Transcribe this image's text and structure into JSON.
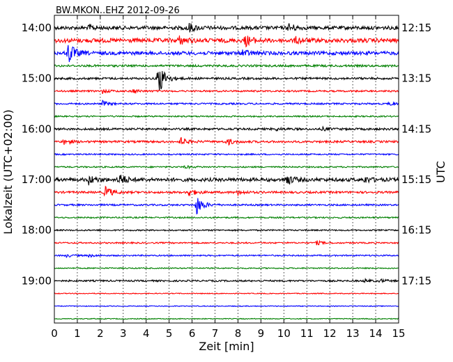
{
  "chart_data": {
    "type": "line",
    "title": "BW.MKON..EHZ 2012-09-26",
    "xlabel": "Zeit  [min]",
    "ylabel_left": "Lokalzeit (UTC+02:00)",
    "ylabel_right": "UTC",
    "xlim": [
      0,
      15
    ],
    "x_ticks": [
      "0",
      "1",
      "2",
      "3",
      "4",
      "5",
      "6",
      "7",
      "8",
      "9",
      "10",
      "11",
      "12",
      "13",
      "14",
      "15"
    ],
    "y_ticks_left": [
      "14:00",
      "15:00",
      "16:00",
      "17:00",
      "18:00",
      "19:00"
    ],
    "y_ticks_right": [
      "12:15",
      "13:15",
      "14:15",
      "15:15",
      "16:15",
      "17:15"
    ],
    "grid": "vertical dotted",
    "colors": [
      "#000000",
      "#ff0000",
      "#0000ff",
      "#008000"
    ],
    "series": [
      {
        "color": "#000000",
        "amp": 2.5,
        "events": [
          [
            1.5,
            4
          ],
          [
            5.8,
            8
          ],
          [
            10.2,
            6
          ]
        ]
      },
      {
        "color": "#ff0000",
        "amp": 3,
        "events": [
          [
            5.4,
            6
          ],
          [
            8.3,
            8
          ],
          [
            10.5,
            4
          ]
        ]
      },
      {
        "color": "#0000ff",
        "amp": 2.5,
        "events": [
          [
            0.6,
            16
          ],
          [
            8.2,
            5
          ]
        ]
      },
      {
        "color": "#008000",
        "amp": 1.5,
        "events": []
      },
      {
        "color": "#000000",
        "amp": 1.5,
        "events": [
          [
            4.5,
            28
          ]
        ]
      },
      {
        "color": "#ff0000",
        "amp": 1.2,
        "events": [
          [
            2.1,
            3
          ],
          [
            3.4,
            3
          ]
        ]
      },
      {
        "color": "#0000ff",
        "amp": 1.2,
        "events": [
          [
            2.1,
            4
          ],
          [
            14.6,
            2
          ]
        ]
      },
      {
        "color": "#008000",
        "amp": 1.0,
        "events": []
      },
      {
        "color": "#000000",
        "amp": 1.5,
        "events": [
          [
            9.6,
            2
          ],
          [
            11.7,
            2
          ]
        ]
      },
      {
        "color": "#ff0000",
        "amp": 1.5,
        "events": [
          [
            0.4,
            4
          ],
          [
            5.5,
            6
          ],
          [
            7.5,
            5
          ]
        ]
      },
      {
        "color": "#0000ff",
        "amp": 1.0,
        "events": []
      },
      {
        "color": "#008000",
        "amp": 1.0,
        "events": [
          [
            5.7,
            2
          ]
        ]
      },
      {
        "color": "#000000",
        "amp": 2.5,
        "events": [
          [
            1.5,
            6
          ],
          [
            2.8,
            10
          ],
          [
            10.1,
            8
          ],
          [
            13.5,
            4
          ]
        ]
      },
      {
        "color": "#ff0000",
        "amp": 1.5,
        "events": [
          [
            2.2,
            10
          ],
          [
            5.8,
            7
          ],
          [
            8.0,
            3
          ]
        ]
      },
      {
        "color": "#0000ff",
        "amp": 1.2,
        "events": [
          [
            6.2,
            14
          ]
        ]
      },
      {
        "color": "#008000",
        "amp": 1.0,
        "events": []
      },
      {
        "color": "#000000",
        "amp": 1.0,
        "events": []
      },
      {
        "color": "#ff0000",
        "amp": 1.0,
        "events": [
          [
            11.4,
            3
          ]
        ]
      },
      {
        "color": "#0000ff",
        "amp": 1.0,
        "events": [
          [
            0.5,
            2
          ],
          [
            1.5,
            2
          ]
        ]
      },
      {
        "color": "#008000",
        "amp": 0.8,
        "events": []
      },
      {
        "color": "#000000",
        "amp": 1.2,
        "events": [
          [
            13.5,
            2
          ],
          [
            14.2,
            2
          ]
        ]
      },
      {
        "color": "#ff0000",
        "amp": 0.6,
        "events": []
      },
      {
        "color": "#0000ff",
        "amp": 0.6,
        "events": []
      },
      {
        "color": "#008000",
        "amp": 0.6,
        "events": []
      }
    ]
  }
}
